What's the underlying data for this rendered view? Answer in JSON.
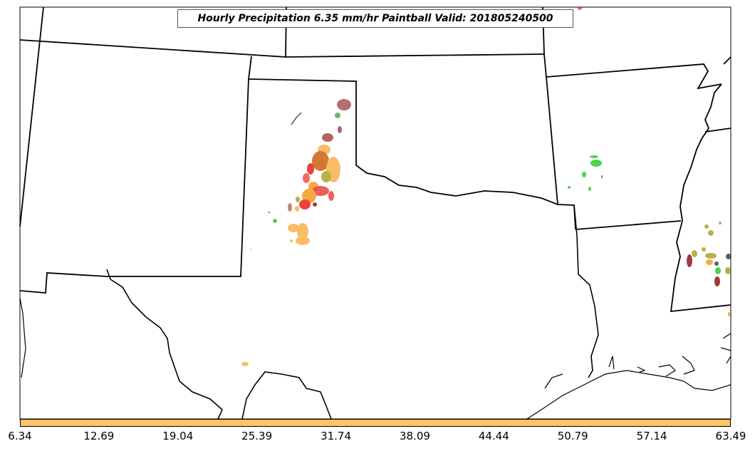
{
  "title": "Hourly Precipitation 6.35 mm/hr Paintball Valid: 201805240500",
  "colorbar": {
    "color": "#fdc468",
    "ticks": [
      "6.34",
      "12.69",
      "19.04",
      "25.39",
      "31.74",
      "38.09",
      "44.44",
      "50.79",
      "57.14",
      "63.49"
    ]
  },
  "colors": {
    "dark_red": "#8b1a1a",
    "brown": "#a0522d",
    "red": "#e8201c",
    "orange": "#f59a1f",
    "light_orange": "#f7b24a",
    "green": "#2ecc2e",
    "olive": "#a8a52a",
    "dark_gray": "#444444"
  }
}
